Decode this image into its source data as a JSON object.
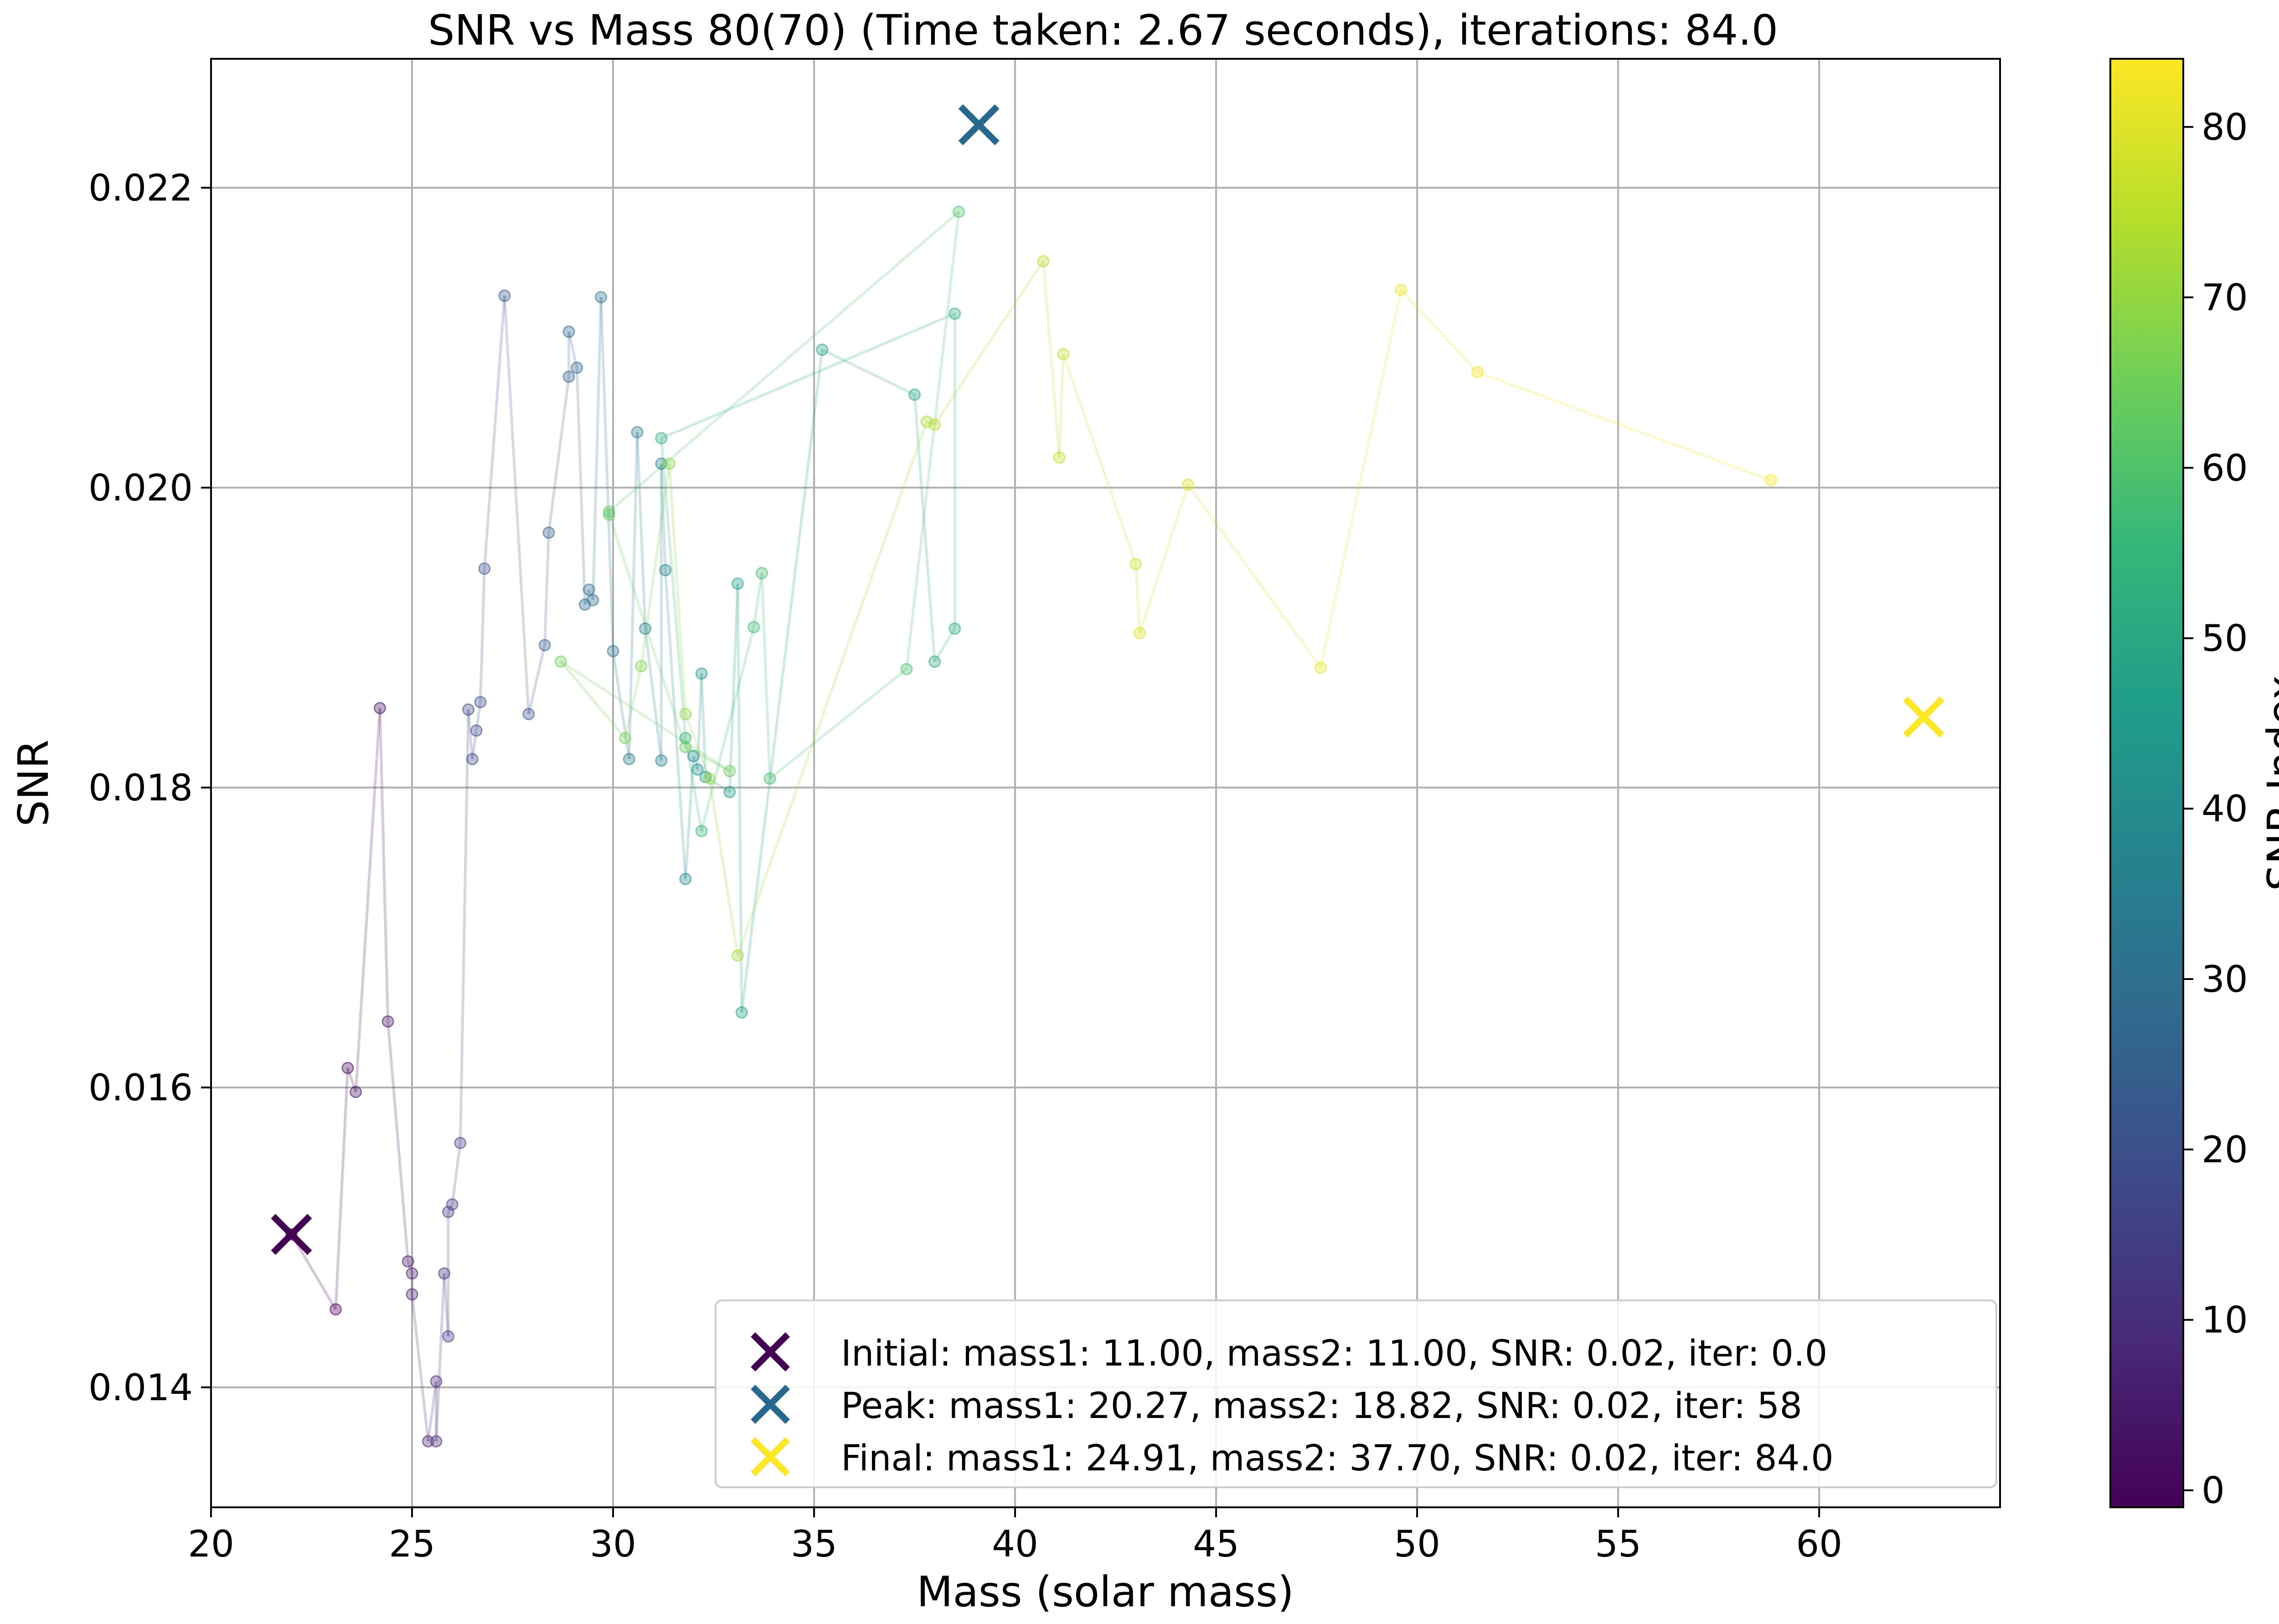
{
  "chart_data": {
    "type": "scatter",
    "title": "SNR vs Mass 80(70) (Time taken: 2.67 seconds), iterations: 84.0",
    "xlabel": "Mass (solar mass)",
    "ylabel": "SNR",
    "xlim": [
      20,
      64.5
    ],
    "ylim": [
      0.0132,
      0.02286
    ],
    "x_ticks": [
      {
        "value": 20,
        "label": "20"
      },
      {
        "value": 25,
        "label": "25"
      },
      {
        "value": 30,
        "label": "30"
      },
      {
        "value": 35,
        "label": "35"
      },
      {
        "value": 40,
        "label": "40"
      },
      {
        "value": 45,
        "label": "45"
      },
      {
        "value": 50,
        "label": "50"
      },
      {
        "value": 55,
        "label": "55"
      },
      {
        "value": 60,
        "label": "60"
      }
    ],
    "y_ticks": [
      {
        "value": 0.014,
        "label": "0.014"
      },
      {
        "value": 0.016,
        "label": "0.016"
      },
      {
        "value": 0.018,
        "label": "0.018"
      },
      {
        "value": 0.02,
        "label": "0.020"
      },
      {
        "value": 0.022,
        "label": "0.022"
      }
    ],
    "grid": true,
    "legend_position": "bottom-right",
    "colormap": "viridis",
    "colors": {
      "viridis": [
        "#440154",
        "#482878",
        "#3e4989",
        "#31688e",
        "#26828e",
        "#1f9e89",
        "#35b779",
        "#6ece58",
        "#b5de2b",
        "#fde725"
      ],
      "initial": "#440154",
      "peak": "#26688e",
      "final": "#fde725",
      "grid": "#b0b0b0"
    },
    "colorbar": {
      "label": "SNR Index",
      "range": [
        -1,
        84
      ],
      "ticks": [
        {
          "value": 0,
          "label": "0"
        },
        {
          "value": 10,
          "label": "10"
        },
        {
          "value": 20,
          "label": "20"
        },
        {
          "value": 30,
          "label": "30"
        },
        {
          "value": 40,
          "label": "40"
        },
        {
          "value": 50,
          "label": "50"
        },
        {
          "value": 60,
          "label": "60"
        },
        {
          "value": 70,
          "label": "70"
        },
        {
          "value": 80,
          "label": "80"
        }
      ]
    },
    "points": [
      {
        "x": 22.0,
        "y": 0.01502
      },
      {
        "x": 23.1,
        "y": 0.01452
      },
      {
        "x": 23.4,
        "y": 0.01613
      },
      {
        "x": 23.6,
        "y": 0.01597
      },
      {
        "x": 24.2,
        "y": 0.01853
      },
      {
        "x": 24.4,
        "y": 0.01644
      },
      {
        "x": 24.9,
        "y": 0.01484
      },
      {
        "x": 25.0,
        "y": 0.01476
      },
      {
        "x": 25.0,
        "y": 0.01462
      },
      {
        "x": 25.4,
        "y": 0.01364
      },
      {
        "x": 25.6,
        "y": 0.01404
      },
      {
        "x": 25.6,
        "y": 0.01364
      },
      {
        "x": 25.8,
        "y": 0.01476
      },
      {
        "x": 25.9,
        "y": 0.01434
      },
      {
        "x": 25.9,
        "y": 0.01517
      },
      {
        "x": 26.0,
        "y": 0.01522
      },
      {
        "x": 26.2,
        "y": 0.01563
      },
      {
        "x": 26.4,
        "y": 0.01852
      },
      {
        "x": 26.5,
        "y": 0.01819
      },
      {
        "x": 26.6,
        "y": 0.01838
      },
      {
        "x": 26.7,
        "y": 0.01857
      },
      {
        "x": 26.8,
        "y": 0.01946
      },
      {
        "x": 27.3,
        "y": 0.02128
      },
      {
        "x": 27.9,
        "y": 0.01849
      },
      {
        "x": 28.3,
        "y": 0.01895
      },
      {
        "x": 28.4,
        "y": 0.0197
      },
      {
        "x": 28.9,
        "y": 0.02074
      },
      {
        "x": 28.9,
        "y": 0.02104
      },
      {
        "x": 29.1,
        "y": 0.0208
      },
      {
        "x": 29.3,
        "y": 0.01922
      },
      {
        "x": 29.4,
        "y": 0.01932
      },
      {
        "x": 29.5,
        "y": 0.01925
      },
      {
        "x": 29.7,
        "y": 0.02127
      },
      {
        "x": 30.0,
        "y": 0.01891
      },
      {
        "x": 30.4,
        "y": 0.01819
      },
      {
        "x": 30.6,
        "y": 0.02037
      },
      {
        "x": 30.8,
        "y": 0.01906
      },
      {
        "x": 31.2,
        "y": 0.01818
      },
      {
        "x": 31.2,
        "y": 0.02016
      },
      {
        "x": 31.3,
        "y": 0.01945
      },
      {
        "x": 31.8,
        "y": 0.01739
      },
      {
        "x": 32.0,
        "y": 0.01821
      },
      {
        "x": 32.1,
        "y": 0.01812
      },
      {
        "x": 32.2,
        "y": 0.01876
      },
      {
        "x": 32.3,
        "y": 0.01807
      },
      {
        "x": 32.9,
        "y": 0.01797
      },
      {
        "x": 33.1,
        "y": 0.01936
      },
      {
        "x": 33.2,
        "y": 0.0165
      },
      {
        "x": 35.2,
        "y": 0.02092
      },
      {
        "x": 37.5,
        "y": 0.02062
      },
      {
        "x": 38.0,
        "y": 0.01884
      },
      {
        "x": 38.5,
        "y": 0.01906
      },
      {
        "x": 38.5,
        "y": 0.02116
      },
      {
        "x": 31.2,
        "y": 0.02033
      },
      {
        "x": 31.8,
        "y": 0.01833
      },
      {
        "x": 32.2,
        "y": 0.01771
      },
      {
        "x": 33.5,
        "y": 0.01907
      },
      {
        "x": 33.7,
        "y": 0.01943
      },
      {
        "x": 33.9,
        "y": 0.01806
      },
      {
        "x": 37.3,
        "y": 0.01879
      },
      {
        "x": 38.6,
        "y": 0.02184
      },
      {
        "x": 29.9,
        "y": 0.01984
      },
      {
        "x": 29.9,
        "y": 0.01982
      },
      {
        "x": 31.8,
        "y": 0.01827
      },
      {
        "x": 32.9,
        "y": 0.01811
      },
      {
        "x": 28.7,
        "y": 0.01884
      },
      {
        "x": 30.3,
        "y": 0.01833
      },
      {
        "x": 30.7,
        "y": 0.01881
      },
      {
        "x": 31.4,
        "y": 0.02016
      },
      {
        "x": 31.8,
        "y": 0.01849
      },
      {
        "x": 32.4,
        "y": 0.01806
      },
      {
        "x": 33.1,
        "y": 0.01688
      },
      {
        "x": 37.8,
        "y": 0.02044
      },
      {
        "x": 38.0,
        "y": 0.02042
      },
      {
        "x": 40.7,
        "y": 0.02151
      },
      {
        "x": 41.1,
        "y": 0.0202
      },
      {
        "x": 41.2,
        "y": 0.02089
      },
      {
        "x": 43.0,
        "y": 0.01949
      },
      {
        "x": 43.1,
        "y": 0.01903
      },
      {
        "x": 44.3,
        "y": 0.02002
      },
      {
        "x": 47.6,
        "y": 0.0188
      },
      {
        "x": 49.6,
        "y": 0.02132
      },
      {
        "x": 51.5,
        "y": 0.02077
      },
      {
        "x": 58.8,
        "y": 0.02005
      }
    ],
    "markers": [
      {
        "name": "Initial",
        "x": 22.0,
        "y": 0.01502
      },
      {
        "name": "Peak",
        "x": 39.1,
        "y": 0.02242
      },
      {
        "name": "Final",
        "x": 62.6,
        "y": 0.01847
      }
    ],
    "legend": [
      "Initial: mass1: 11.00, mass2: 11.00, SNR: 0.02, iter: 0.0",
      "Peak: mass1: 20.27, mass2: 18.82, SNR: 0.02, iter: 58",
      "Final: mass1: 24.91, mass2: 37.70, SNR: 0.02, iter: 84.0"
    ]
  }
}
